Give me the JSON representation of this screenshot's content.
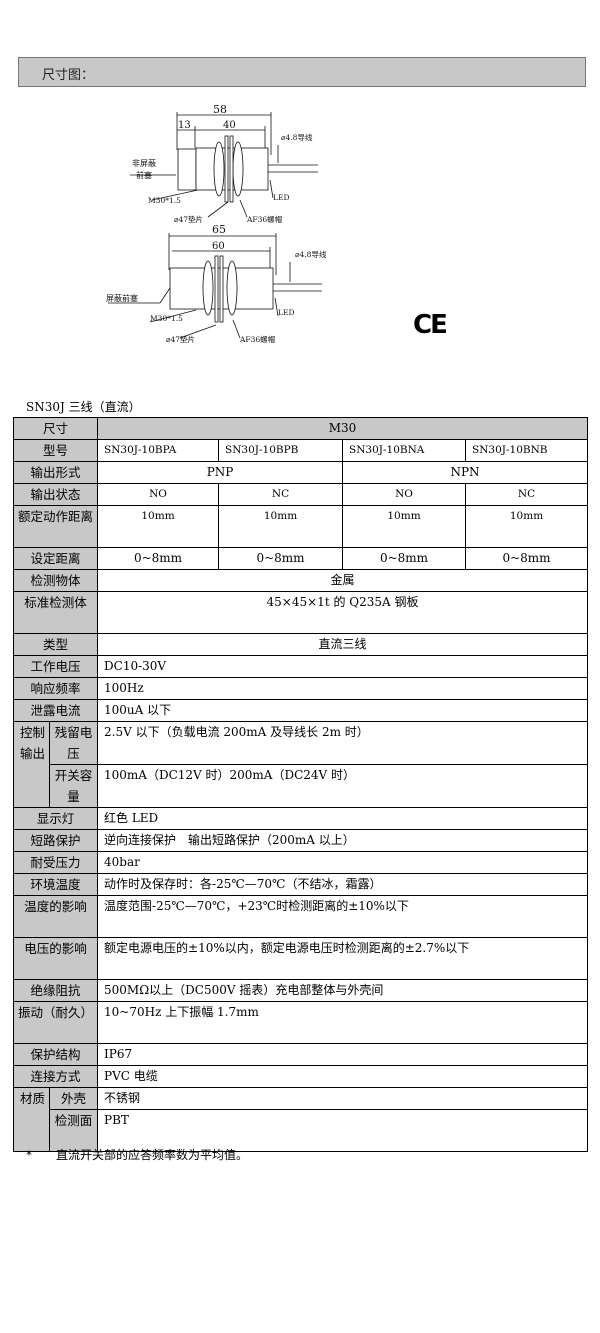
{
  "section_title": "尺寸图：",
  "diagram": {
    "top": {
      "dim_total": "58",
      "dim_front": "13",
      "dim_body": "40",
      "front_cap": [
        "非屏蔽",
        "前塞"
      ],
      "thread": "M30*1.5",
      "washer": "⌀47垫片",
      "nut": "AF36螺帽",
      "cable": "⌀4.8导线",
      "led": "LED"
    },
    "bottom": {
      "dim_total": "65",
      "dim_body": "60",
      "front_cap": "屏蔽前塞",
      "thread": "M30*1.5",
      "washer": "⌀47垫片",
      "nut": "AF36螺帽",
      "cable": "⌀4.8导线",
      "led": "LED"
    }
  },
  "ce_mark": "CE",
  "caption": "SN30J 三线（直流）",
  "table": {
    "size_label": "尺寸",
    "size": "M30",
    "model_label": "型号",
    "models": [
      "SN30J-10BPA",
      "SN30J-10BPB",
      "SN30J-10BNA",
      "SN30J-10BNB"
    ],
    "output_form_label": "输出形式",
    "output_forms": [
      "PNP",
      "NPN"
    ],
    "output_state_label": "输出状态",
    "output_states": [
      "NO",
      "NC",
      "NO",
      "NC"
    ],
    "rated_distance_label": "额定动作距离",
    "rated_distances": [
      "10mm",
      "10mm",
      "10mm",
      "10mm"
    ],
    "set_distance_label": "设定距离",
    "set_distances": [
      "0~8mm",
      "0~8mm",
      "0~8mm",
      "0~8mm"
    ],
    "rows_a": [
      {
        "label": "检测物体",
        "value": "金属",
        "center": true
      },
      {
        "label": "标准检测体",
        "value": "45×45×1t 的 Q235A 钢板",
        "center": true,
        "tall": true
      },
      {
        "label": "类型",
        "value": "直流三线",
        "center": true
      },
      {
        "label": "工作电压",
        "value": "DC10-30V"
      },
      {
        "label": "响应频率",
        "value": "100Hz"
      },
      {
        "label": "泄露电流",
        "value": "100uA 以下"
      }
    ],
    "control_output": {
      "label": "控制输出",
      "residual_label": "残留电压",
      "residual": "2.5V 以下（负载电流 200mA 及导线长 2m 时）",
      "capacity_label": "开关容量",
      "capacity": "100mA（DC12V 时）200mA（DC24V 时）"
    },
    "rows_b": [
      {
        "label": "显示灯",
        "value": "红色 LED"
      },
      {
        "label": "短路保护",
        "value": "逆向连接保护　输出短路保护（200mA 以上）"
      },
      {
        "label": "耐受压力",
        "value": "40bar"
      },
      {
        "label": "环境温度",
        "value": "动作时及保存时：各-25℃—70℃（不结冰，霜露）"
      },
      {
        "label": "温度的影响",
        "value": "温度范围-25℃—70℃，+23℃时检测距离的±10%以下",
        "tall": true
      },
      {
        "label": "电压的影响",
        "value": "额定电源电压的±10%以内，额定电源电压时检测距离的±2.7%以下",
        "tall": true
      },
      {
        "label": "绝缘阻抗",
        "value": "500MΩ以上（DC500V 摇表）充电部整体与外壳间"
      },
      {
        "label": "振动（耐久）",
        "value": "10~70Hz 上下振幅 1.7mm",
        "tall": true
      },
      {
        "label": "保护结构",
        "value": "IP67"
      },
      {
        "label": "连接方式",
        "value": "PVC 电缆"
      }
    ],
    "material": {
      "label": "材质",
      "shell_label": "外壳",
      "shell": "不锈钢",
      "face_label": "检测面",
      "face": "PBT"
    }
  },
  "footnote": {
    "mark": "*",
    "text": "直流开关部的应答频率数为平均值。"
  }
}
